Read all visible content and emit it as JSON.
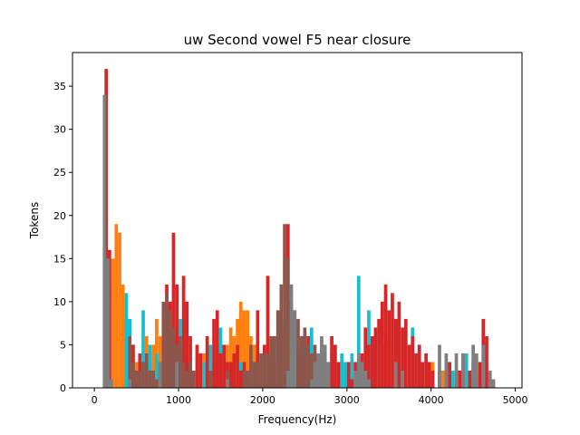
{
  "chart_data": {
    "type": "bar",
    "title": "uw Second vowel F5 near closure",
    "xlabel": "Frequency(Hz)",
    "ylabel": "Tokens",
    "xlim": [
      -260,
      5080
    ],
    "ylim": [
      0,
      38.9
    ],
    "xticks": [
      0,
      1000,
      2000,
      3000,
      4000,
      5000
    ],
    "yticks": [
      0,
      5,
      10,
      15,
      20,
      25,
      30,
      35
    ],
    "xtick_labels": [
      "0",
      "1000",
      "2000",
      "3000",
      "4000",
      "5000"
    ],
    "ytick_labels": [
      "0",
      "5",
      "10",
      "15",
      "20",
      "25",
      "30",
      "35"
    ],
    "grid": false,
    "legend": "none",
    "bin_width": 40,
    "series": [
      {
        "color": "#ff7f0e",
        "bins": [
          [
            200,
            15
          ],
          [
            240,
            19
          ],
          [
            280,
            18
          ],
          [
            320,
            12
          ],
          [
            360,
            8
          ],
          [
            400,
            5
          ],
          [
            440,
            4
          ],
          [
            480,
            3
          ],
          [
            600,
            6
          ],
          [
            640,
            3
          ],
          [
            680,
            5
          ],
          [
            720,
            8
          ],
          [
            760,
            6
          ],
          [
            800,
            4
          ],
          [
            840,
            7
          ],
          [
            880,
            9
          ],
          [
            920,
            6
          ],
          [
            960,
            5
          ],
          [
            1000,
            5
          ],
          [
            1040,
            4
          ],
          [
            1080,
            3
          ],
          [
            1120,
            2
          ],
          [
            1240,
            2
          ],
          [
            1280,
            4
          ],
          [
            1360,
            2
          ],
          [
            1480,
            3
          ],
          [
            1560,
            5
          ],
          [
            1600,
            7
          ],
          [
            1640,
            6
          ],
          [
            1680,
            8
          ],
          [
            1720,
            10
          ],
          [
            1760,
            9
          ],
          [
            1800,
            9
          ],
          [
            1840,
            6
          ],
          [
            1880,
            5
          ],
          [
            1920,
            3
          ],
          [
            3440,
            5
          ],
          [
            3480,
            6
          ],
          [
            3560,
            4
          ],
          [
            3760,
            4
          ],
          [
            4000,
            3
          ],
          [
            4120,
            2
          ]
        ]
      },
      {
        "color": "#17becf",
        "bins": [
          [
            360,
            11
          ],
          [
            400,
            8
          ],
          [
            440,
            5
          ],
          [
            560,
            9
          ],
          [
            640,
            5
          ],
          [
            720,
            4
          ],
          [
            800,
            2
          ],
          [
            1000,
            8
          ],
          [
            1040,
            4
          ],
          [
            1280,
            3
          ],
          [
            1360,
            5
          ],
          [
            1400,
            3
          ],
          [
            1440,
            4
          ],
          [
            1480,
            7
          ],
          [
            1520,
            5
          ],
          [
            1720,
            3
          ],
          [
            1840,
            4
          ],
          [
            2120,
            6
          ],
          [
            2240,
            8
          ],
          [
            2280,
            10
          ],
          [
            2320,
            7
          ],
          [
            2360,
            9
          ],
          [
            2400,
            5
          ],
          [
            2440,
            6
          ],
          [
            2480,
            4
          ],
          [
            2520,
            5
          ],
          [
            2560,
            7
          ],
          [
            2600,
            4
          ],
          [
            2640,
            3
          ],
          [
            2680,
            5
          ],
          [
            2720,
            4
          ],
          [
            2760,
            3
          ],
          [
            2800,
            4
          ],
          [
            2840,
            5
          ],
          [
            2880,
            3
          ],
          [
            2920,
            4
          ],
          [
            2960,
            3
          ],
          [
            3000,
            2
          ],
          [
            3040,
            4
          ],
          [
            3120,
            13
          ],
          [
            3240,
            9
          ],
          [
            3320,
            6
          ],
          [
            3760,
            7
          ],
          [
            3840,
            5
          ],
          [
            4160,
            3
          ],
          [
            4240,
            2
          ],
          [
            4400,
            4
          ]
        ]
      },
      {
        "color": "#d62728",
        "bins": [
          [
            120,
            37
          ],
          [
            160,
            16
          ],
          [
            440,
            5
          ],
          [
            480,
            2
          ],
          [
            520,
            4
          ],
          [
            840,
            12
          ],
          [
            880,
            10
          ],
          [
            920,
            18
          ],
          [
            960,
            12
          ],
          [
            1000,
            4
          ],
          [
            1040,
            13
          ],
          [
            1080,
            10
          ],
          [
            1120,
            6
          ],
          [
            1200,
            5
          ],
          [
            1240,
            4
          ],
          [
            1320,
            6
          ],
          [
            1400,
            8
          ],
          [
            1440,
            9
          ],
          [
            1480,
            4
          ],
          [
            1520,
            5
          ],
          [
            1560,
            3
          ],
          [
            1600,
            3
          ],
          [
            1640,
            4
          ],
          [
            1680,
            5
          ],
          [
            1720,
            2
          ],
          [
            1760,
            3
          ],
          [
            1800,
            2
          ],
          [
            1920,
            9
          ],
          [
            2000,
            5
          ],
          [
            2040,
            13
          ],
          [
            2080,
            4
          ],
          [
            2120,
            3
          ],
          [
            2200,
            7
          ],
          [
            2280,
            19
          ],
          [
            2320,
            8
          ],
          [
            2400,
            4
          ],
          [
            2440,
            5
          ],
          [
            2520,
            6
          ],
          [
            2560,
            4
          ],
          [
            2640,
            3
          ],
          [
            2720,
            4
          ],
          [
            2800,
            6
          ],
          [
            2840,
            5
          ],
          [
            2880,
            3
          ],
          [
            3000,
            3
          ],
          [
            3040,
            1
          ],
          [
            3080,
            3
          ],
          [
            3120,
            3
          ],
          [
            3160,
            4
          ],
          [
            3200,
            7
          ],
          [
            3240,
            5
          ],
          [
            3280,
            6
          ],
          [
            3320,
            7
          ],
          [
            3360,
            8
          ],
          [
            3400,
            10
          ],
          [
            3440,
            12
          ],
          [
            3480,
            9
          ],
          [
            3520,
            11
          ],
          [
            3560,
            8
          ],
          [
            3600,
            10
          ],
          [
            3640,
            7
          ],
          [
            3680,
            8
          ],
          [
            3720,
            5
          ],
          [
            3760,
            6
          ],
          [
            3800,
            4
          ],
          [
            3840,
            5
          ],
          [
            3880,
            3
          ],
          [
            3920,
            4
          ],
          [
            3960,
            3
          ],
          [
            4000,
            2
          ],
          [
            4080,
            2
          ],
          [
            4200,
            3
          ],
          [
            4320,
            2
          ],
          [
            4360,
            4
          ],
          [
            4440,
            2
          ],
          [
            4480,
            3
          ],
          [
            4520,
            2
          ],
          [
            4560,
            3
          ],
          [
            4600,
            8
          ],
          [
            4640,
            6
          ],
          [
            4680,
            2
          ],
          [
            4720,
            1
          ]
        ]
      },
      {
        "color": "#8c564b",
        "bins": [
          [
            400,
            6
          ],
          [
            440,
            3
          ],
          [
            480,
            2
          ],
          [
            520,
            2
          ],
          [
            560,
            3
          ],
          [
            600,
            4
          ],
          [
            640,
            2
          ],
          [
            680,
            2
          ],
          [
            720,
            1
          ],
          [
            760,
            3
          ],
          [
            800,
            10
          ],
          [
            840,
            11
          ],
          [
            880,
            9
          ],
          [
            920,
            7
          ],
          [
            960,
            5
          ],
          [
            1000,
            6
          ],
          [
            1040,
            3
          ],
          [
            1080,
            2
          ],
          [
            1120,
            3
          ],
          [
            1160,
            2
          ],
          [
            1360,
            2
          ],
          [
            1560,
            2
          ],
          [
            1760,
            2
          ],
          [
            1800,
            2
          ],
          [
            1840,
            5
          ],
          [
            1880,
            3
          ],
          [
            1920,
            3
          ],
          [
            1960,
            4
          ],
          [
            2000,
            4
          ],
          [
            2040,
            4
          ],
          [
            2080,
            6
          ],
          [
            2120,
            6
          ],
          [
            2160,
            9
          ],
          [
            2200,
            12
          ],
          [
            2240,
            19
          ],
          [
            2280,
            15
          ],
          [
            2320,
            10
          ],
          [
            2400,
            8
          ],
          [
            2440,
            6
          ],
          [
            2480,
            7
          ],
          [
            2520,
            5
          ],
          [
            2560,
            4
          ],
          [
            2600,
            5
          ],
          [
            2640,
            4
          ],
          [
            2680,
            2
          ]
        ]
      },
      {
        "color": "#7f7f7f",
        "bins": [
          [
            100,
            34
          ],
          [
            140,
            15
          ],
          [
            180,
            1
          ],
          [
            400,
            1
          ],
          [
            760,
            3
          ],
          [
            960,
            3
          ],
          [
            1560,
            1
          ],
          [
            2280,
            2
          ],
          [
            2320,
            12
          ],
          [
            2360,
            9
          ],
          [
            2560,
            1
          ],
          [
            2600,
            3
          ],
          [
            2640,
            4
          ],
          [
            2680,
            6
          ],
          [
            2720,
            5
          ],
          [
            2760,
            3
          ],
          [
            3080,
            2
          ],
          [
            3120,
            4
          ],
          [
            3160,
            3
          ],
          [
            3200,
            2
          ],
          [
            3240,
            1
          ],
          [
            3560,
            3
          ],
          [
            3640,
            2
          ],
          [
            4080,
            5
          ],
          [
            4160,
            4
          ],
          [
            4280,
            4
          ],
          [
            4360,
            4
          ],
          [
            4480,
            5
          ],
          [
            4520,
            4
          ],
          [
            4600,
            5
          ],
          [
            4680,
            2
          ],
          [
            4720,
            1
          ]
        ]
      }
    ]
  }
}
